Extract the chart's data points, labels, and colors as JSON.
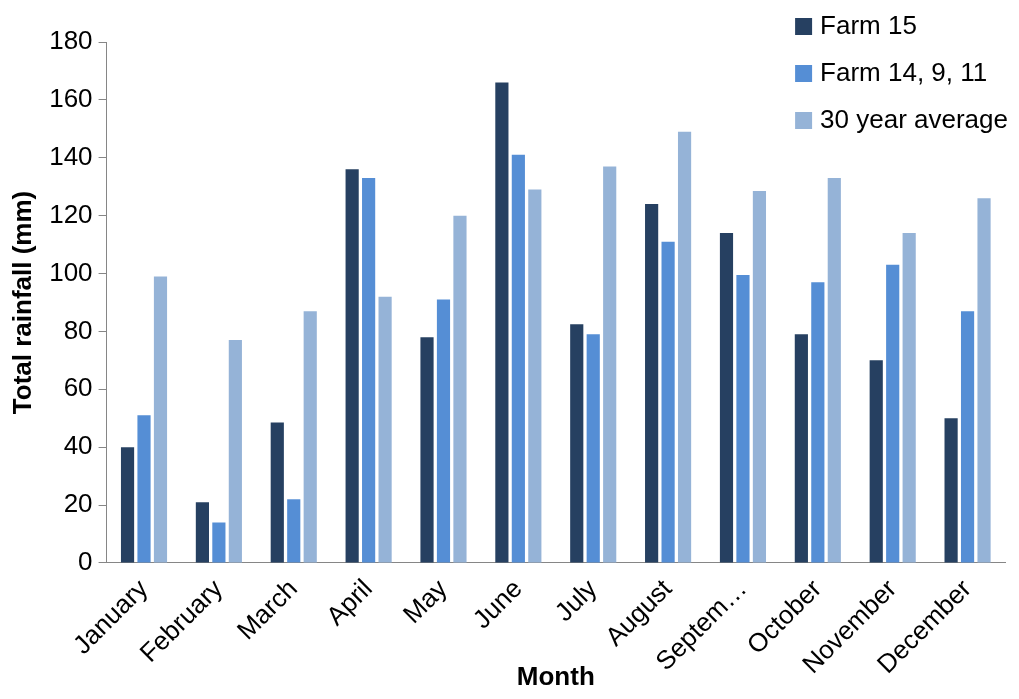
{
  "chart_data": {
    "type": "bar",
    "xlabel": "Month",
    "ylabel": "Total rainfall (mm)",
    "categories": [
      "January",
      "February",
      "March",
      "April",
      "May",
      "June",
      "July",
      "August",
      "Septem…",
      "October",
      "November",
      "December"
    ],
    "series": [
      {
        "name": "Farm 15",
        "color": "#264061",
        "values": [
          40,
          21,
          48.5,
          136,
          78,
          166,
          82.5,
          124,
          114,
          79,
          70,
          50
        ]
      },
      {
        "name": "Farm 14, 9, 11",
        "color": "#558ed5",
        "values": [
          51,
          14,
          22,
          133,
          91,
          141,
          79,
          111,
          99.5,
          97,
          103,
          87
        ]
      },
      {
        "name": "30 year average",
        "color": "#95b3d7",
        "values": [
          99,
          77,
          87,
          92,
          120,
          129,
          137,
          149,
          128.5,
          133,
          114,
          126
        ]
      }
    ],
    "ylim": [
      0,
      180
    ],
    "yticks": [
      0,
      20,
      40,
      60,
      80,
      100,
      120,
      140,
      160,
      180
    ],
    "grid": false,
    "legend": "top right"
  }
}
